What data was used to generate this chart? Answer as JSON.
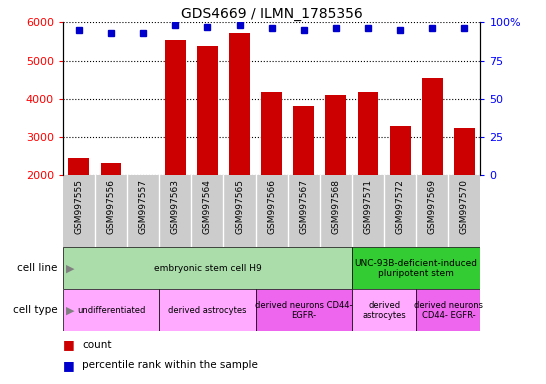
{
  "title": "GDS4669 / ILMN_1785356",
  "samples": [
    "GSM997555",
    "GSM997556",
    "GSM997557",
    "GSM997563",
    "GSM997564",
    "GSM997565",
    "GSM997566",
    "GSM997567",
    "GSM997568",
    "GSM997571",
    "GSM997572",
    "GSM997569",
    "GSM997570"
  ],
  "counts": [
    2460,
    2330,
    2020,
    5530,
    5380,
    5730,
    4180,
    3820,
    4100,
    4170,
    3280,
    4540,
    3230
  ],
  "percentiles": [
    95,
    93,
    93,
    98,
    97,
    98,
    96,
    95,
    96,
    96,
    95,
    96,
    96
  ],
  "bar_color": "#cc0000",
  "dot_color": "#0000cc",
  "ylim_left": [
    2000,
    6000
  ],
  "ylim_right": [
    0,
    100
  ],
  "yticks_left": [
    2000,
    3000,
    4000,
    5000,
    6000
  ],
  "yticks_right": [
    0,
    25,
    50,
    75,
    100
  ],
  "xtick_bg_color": "#cccccc",
  "cell_line_groups": [
    {
      "label": "embryonic stem cell H9",
      "start": 0,
      "end": 9,
      "color": "#aaddaa"
    },
    {
      "label": "UNC-93B-deficient-induced\npluripotent stem",
      "start": 9,
      "end": 13,
      "color": "#33cc33"
    }
  ],
  "cell_type_groups": [
    {
      "label": "undifferentiated",
      "start": 0,
      "end": 3,
      "color": "#ffaaff"
    },
    {
      "label": "derived astrocytes",
      "start": 3,
      "end": 6,
      "color": "#ffaaff"
    },
    {
      "label": "derived neurons CD44-\nEGFR-",
      "start": 6,
      "end": 9,
      "color": "#ee66ee"
    },
    {
      "label": "derived\nastrocytes",
      "start": 9,
      "end": 11,
      "color": "#ffaaff"
    },
    {
      "label": "derived neurons\nCD44- EGFR-",
      "start": 11,
      "end": 13,
      "color": "#ee66ee"
    }
  ],
  "cell_line_label": "cell line",
  "cell_type_label": "cell type",
  "legend_count_color": "#cc0000",
  "legend_dot_color": "#0000cc"
}
